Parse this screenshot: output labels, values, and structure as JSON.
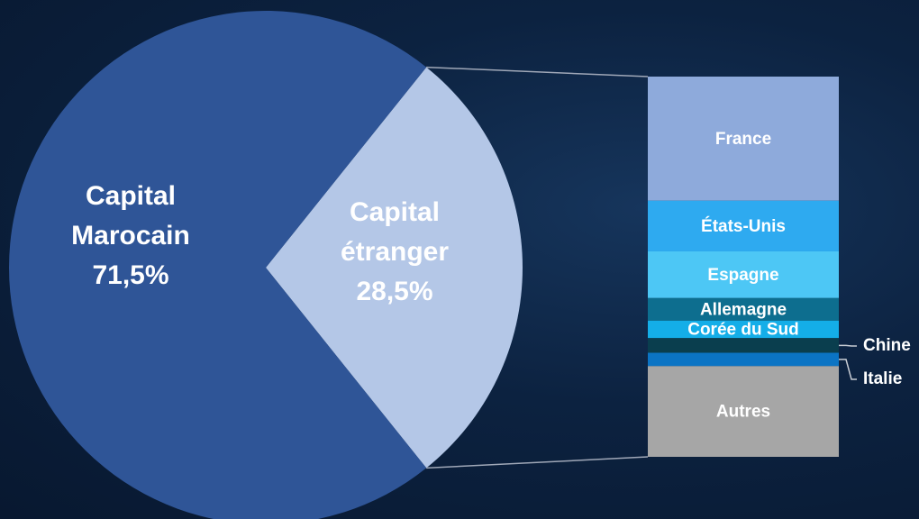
{
  "chart_data": [
    {
      "type": "pie",
      "categories": [
        "Capital Marocain",
        "Capital étranger"
      ],
      "values": [
        71.5,
        28.5
      ],
      "value_labels": [
        "71,5%",
        "28,5%"
      ],
      "colors": [
        "#2f5597",
        "#b4c7e7"
      ]
    },
    {
      "type": "stacked-bar",
      "categories": [
        "France",
        "États-Unis",
        "Espagne",
        "Allemagne",
        "Corée du Sud",
        "Chine",
        "Italie",
        "Autres"
      ],
      "values": [
        9.3,
        3.8,
        3.5,
        1.7,
        1.3,
        1.1,
        1.0,
        6.8
      ],
      "colors": [
        "#8eaadb",
        "#2eaaf0",
        "#4dc7f5",
        "#0d6e8f",
        "#14aee8",
        "#0a3e4e",
        "#0b74c4",
        "#a6a6a6"
      ]
    }
  ]
}
